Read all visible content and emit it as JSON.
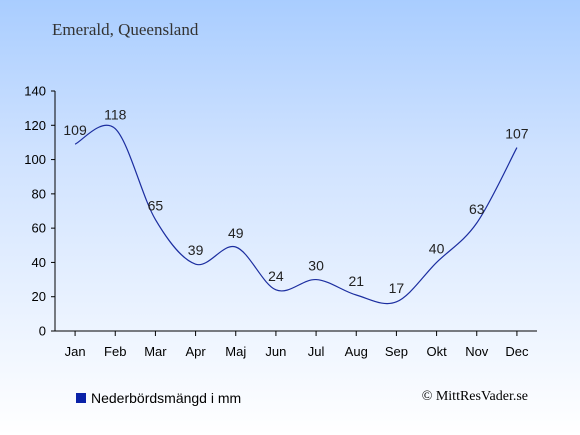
{
  "header": {
    "title": "Emerald, Queensland"
  },
  "legend": {
    "label": "Nederbördsmängd i mm",
    "color": "#0a22a8"
  },
  "credit": {
    "text": "© MittResVader.se"
  },
  "chart_data": {
    "type": "line",
    "categories": [
      "Jan",
      "Feb",
      "Mar",
      "Apr",
      "Maj",
      "Jun",
      "Jul",
      "Aug",
      "Sep",
      "Okt",
      "Nov",
      "Dec"
    ],
    "series": [
      {
        "name": "Nederbördsmängd i mm",
        "values": [
          109,
          118,
          65,
          39,
          49,
          24,
          30,
          21,
          17,
          40,
          63,
          107
        ],
        "color": "#1c2ea0"
      }
    ],
    "ylim": [
      0,
      140
    ],
    "yticks": [
      0,
      20,
      40,
      60,
      80,
      100,
      120,
      140
    ],
    "grid": false,
    "legend_position": "bottom-left"
  }
}
